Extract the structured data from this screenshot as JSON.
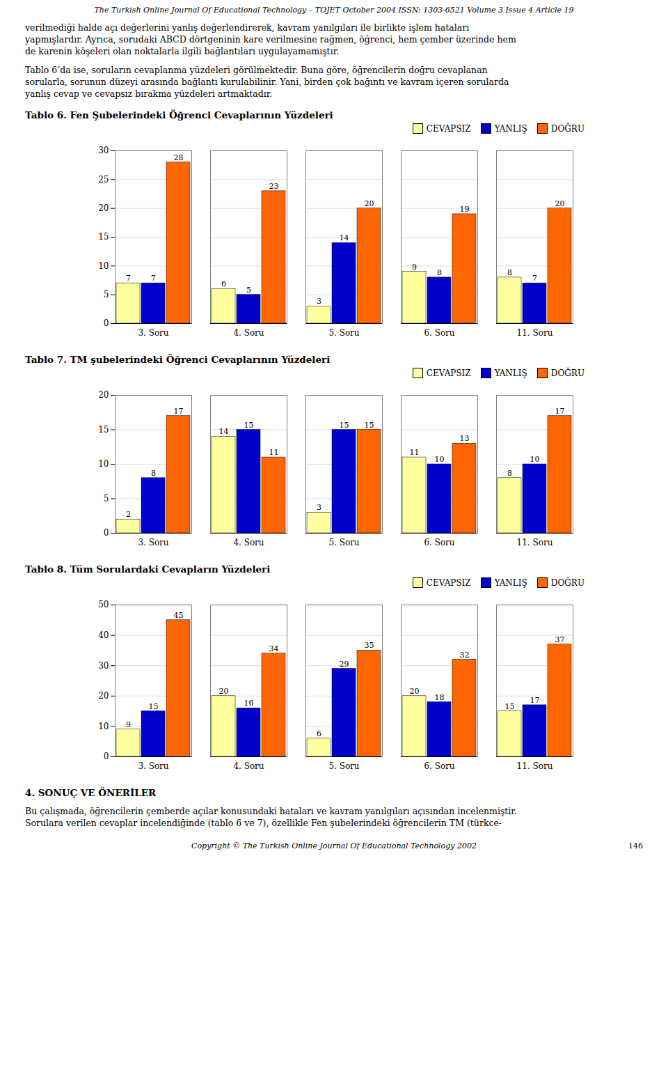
{
  "page": {
    "header": "The Turkish Online Journal Of Educational Technology – TOJET October 2004 ISSN: 1303-6521 Volume 3 Issue 4 Article 19",
    "paragraphs_before": [
      [
        "verilmediği halde açı değerlerini yanlış değerlendirerek, kavram yanılgıları ile birlikte işlem hataları",
        "yapmışlardır. Ayrıca, sorudaki ABCD dörtgeninin kare verilmesine rağmen, öğrenci, hem çember üzerinde hem",
        "de karenin köşeleri olan noktalarla ilgili bağlantıları uygulayamamıştır."
      ],
      [
        "Tablo 6’da ise, soruların cevaplanma yüzdeleri görülmektedir. Buna göre, öğrencilerin doğru cevaplanan",
        "sorularla, sorunun düzeyi arasında bağlantı kurulabilinir. Yani, birden çok bağıntı ve kavram içeren sorularda",
        "yanlış cevap ve cevapsız bırakma yüzdeleri artmaktadır."
      ]
    ],
    "heading": "4. SONUÇ VE ÖNERİLER",
    "paragraphs_after": [
      [
        "Bu çalışmada, öğrencilerin çemberde açılar konusundaki hataları ve kavram yanılgıları açısından incelenmiştir.",
        "Sorulara verilen cevaplar incelendiğinde (tablo 6 ve 7), özellikle Fen şubelerindeki öğrencilerin TM (türkce-"
      ]
    ],
    "footer": "Copyright © The Turkish Online Journal Of Educational Technology 2002",
    "page_number": "146"
  },
  "chart_data": [
    {
      "type": "bar",
      "title": "Tablo 6.  Fen Şubelerindeki Öğrenci Cevaplarının Yüzdeleri",
      "categories": [
        "3. Soru",
        "4. Soru",
        "5. Soru",
        "6. Soru",
        "11. Soru"
      ],
      "series": [
        {
          "name": "CEVAPSIZ",
          "color": "#FFFFA0",
          "values": [
            7,
            6,
            3,
            9,
            8
          ]
        },
        {
          "name": "YANLIŞ",
          "color": "#0000CC",
          "values": [
            7,
            5,
            14,
            8,
            7
          ]
        },
        {
          "name": "DOĞRU",
          "color": "#FF6600",
          "values": [
            28,
            23,
            20,
            19,
            20
          ]
        }
      ],
      "ylim": [
        0,
        30
      ],
      "yticks": [
        0,
        5,
        10,
        15,
        20,
        25,
        30
      ],
      "grid": true,
      "legend": "upper right",
      "data_labels": true
    },
    {
      "type": "bar",
      "title": "Tablo 7.  TM şubelerindeki Öğrenci Cevaplarının Yüzdeleri",
      "categories": [
        "3. Soru",
        "4. Soru",
        "5. Soru",
        "6. Soru",
        "11. Soru"
      ],
      "series": [
        {
          "name": "CEVAPSIZ",
          "color": "#FFFFA0",
          "values": [
            2,
            14,
            3,
            11,
            8
          ]
        },
        {
          "name": "YANLIŞ",
          "color": "#0000CC",
          "values": [
            8,
            15,
            15,
            10,
            10
          ]
        },
        {
          "name": "DOĞRU",
          "color": "#FF6600",
          "values": [
            17,
            11,
            15,
            13,
            17
          ]
        }
      ],
      "ylim": [
        0,
        20
      ],
      "yticks": [
        0,
        5,
        10,
        15,
        20
      ],
      "grid": true,
      "legend": "upper right",
      "data_labels": true
    },
    {
      "type": "bar",
      "title": "Tablo 8. Tüm Sorulardaki Cevapların Yüzdeleri",
      "categories": [
        "3. Soru",
        "4. Soru",
        "5. Soru",
        "6. Soru",
        "11. Soru"
      ],
      "series": [
        {
          "name": "CEVAPSIZ",
          "color": "#FFFFA0",
          "values": [
            9,
            20,
            6,
            20,
            15
          ]
        },
        {
          "name": "YANLIŞ",
          "color": "#0000CC",
          "values": [
            15,
            16,
            29,
            18,
            17
          ]
        },
        {
          "name": "DOĞRU",
          "color": "#FF6600",
          "values": [
            45,
            34,
            35,
            32,
            37
          ]
        }
      ],
      "ylim": [
        0,
        50
      ],
      "yticks": [
        0,
        10,
        20,
        30,
        40,
        50
      ],
      "grid": true,
      "legend": "upper right",
      "data_labels": true
    }
  ]
}
